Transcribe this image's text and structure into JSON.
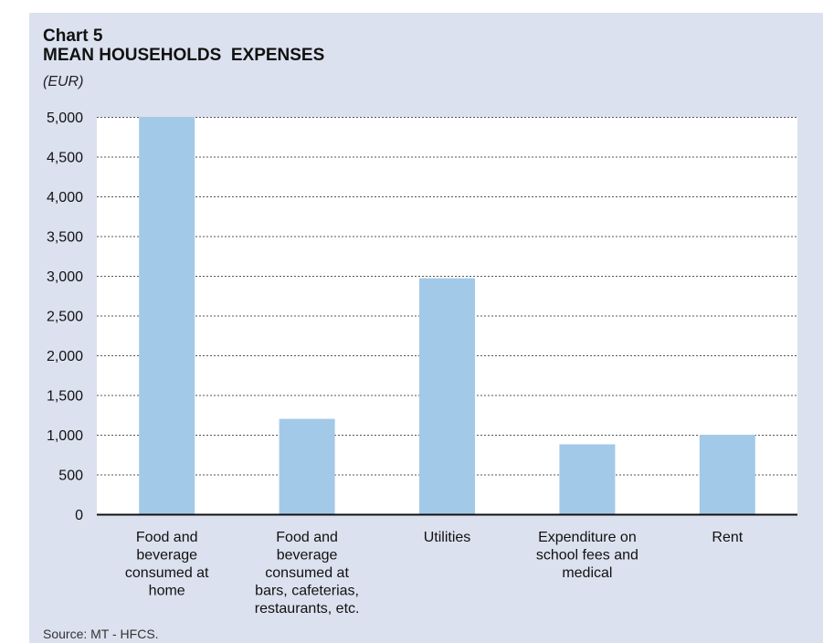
{
  "header": {
    "chart_number": "Chart 5",
    "chart_title": "MEAN HOUSEHOLDS  EXPENSES",
    "unit": "(EUR)"
  },
  "footer": {
    "source": "Source: MT - HFCS."
  },
  "colors": {
    "panel_background": "#dbe1ee",
    "plot_background": "#ffffff",
    "bar_fill": "#a3c9e9",
    "axis": "#111111",
    "gridline": "#555555"
  },
  "chart_data": {
    "type": "bar",
    "title": "MEAN HOUSEHOLDS  EXPENSES",
    "xlabel": "",
    "ylabel": "",
    "ylim": [
      0,
      5000
    ],
    "grid": true,
    "y_ticks": [
      "0",
      "500",
      "1,000",
      "1,500",
      "2,000",
      "2,500",
      "3,000",
      "3,500",
      "4,000",
      "4,500",
      "5,000"
    ],
    "categories": [
      "Food and beverage consumed at home",
      "Food and beverage consumed at bars, cafeterias, restaurants, etc.",
      "Utilities",
      "Expenditure on school fees and medical",
      "Rent"
    ],
    "category_lines": [
      [
        "Food and",
        "beverage",
        "consumed at",
        "home"
      ],
      [
        "Food and",
        "beverage",
        "consumed at",
        "bars, cafeterias,",
        "restaurants, etc."
      ],
      [
        "Utilities"
      ],
      [
        "Expenditure on",
        "school fees and",
        "medical"
      ],
      [
        "Rent"
      ]
    ],
    "values": [
      5000,
      1200,
      2970,
      880,
      1000
    ]
  }
}
